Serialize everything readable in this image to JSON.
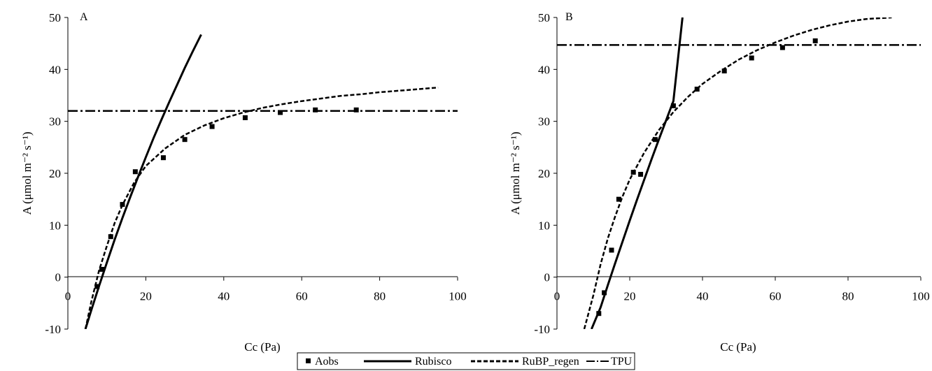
{
  "chart_data": [
    {
      "type": "line",
      "panel_label": "A",
      "xlabel": "Cc (Pa)",
      "ylabel": "A (μmol m⁻² s⁻¹)",
      "xlim": [
        0,
        100
      ],
      "ylim": [
        -10,
        50
      ],
      "x_ticks": [
        0,
        20,
        40,
        60,
        80,
        100
      ],
      "y_ticks": [
        -10,
        0,
        10,
        20,
        30,
        40,
        50
      ],
      "grid": false,
      "series": [
        {
          "name": "Aobs",
          "style": "markers",
          "x": [
            7.5,
            8.7,
            11.0,
            14.0,
            17.3,
            24.5,
            30.0,
            37.0,
            45.5,
            54.5,
            63.5,
            74.0
          ],
          "y": [
            -1.8,
            1.5,
            7.8,
            14.0,
            20.3,
            23.0,
            26.5,
            29.0,
            30.7,
            31.7,
            32.2,
            32.2
          ]
        },
        {
          "name": "Rubisco",
          "style": "solid",
          "x": [
            4.5,
            6,
            8,
            10,
            12,
            14,
            16,
            18,
            20,
            22,
            24,
            26,
            28,
            30,
            32,
            34.2
          ],
          "y": [
            -10,
            -6.4,
            -1.7,
            2.8,
            7.2,
            11.4,
            15.4,
            19.3,
            23.1,
            26.8,
            30.3,
            33.7,
            37.0,
            40.3,
            43.4,
            46.7
          ]
        },
        {
          "name": "RuBP_regen",
          "style": "dashed",
          "x": [
            4.5,
            6,
            8,
            10,
            12,
            14,
            17,
            20,
            25,
            30,
            35,
            40,
            45,
            50,
            55,
            60,
            65,
            70,
            75,
            80,
            85,
            90,
            95
          ],
          "y": [
            -10,
            -4.8,
            1.3,
            6.0,
            10.4,
            13.9,
            18.2,
            21.4,
            24.8,
            27.4,
            29.2,
            30.6,
            31.7,
            32.6,
            33.3,
            33.9,
            34.4,
            34.9,
            35.2,
            35.6,
            35.9,
            36.2,
            36.5
          ]
        },
        {
          "name": "TPU",
          "style": "dashdot",
          "x": [
            0,
            100
          ],
          "y": [
            32,
            32
          ]
        }
      ]
    },
    {
      "type": "line",
      "panel_label": "B",
      "xlabel": "Cc (Pa)",
      "ylabel": "A (μmol m⁻² s⁻¹)",
      "xlim": [
        0,
        100
      ],
      "ylim": [
        -10,
        50
      ],
      "x_ticks": [
        0,
        20,
        40,
        60,
        80,
        100
      ],
      "y_ticks": [
        -10,
        0,
        10,
        20,
        30,
        40,
        50
      ],
      "grid": false,
      "series": [
        {
          "name": "Aobs",
          "style": "markers",
          "x": [
            11.5,
            13.0,
            15.0,
            17.0,
            21.0,
            23.0,
            27.0,
            32.0,
            38.5,
            46.0,
            53.5,
            62.0,
            71.0
          ],
          "y": [
            -7.0,
            -3.0,
            5.2,
            15.0,
            20.2,
            19.8,
            26.5,
            33.0,
            36.2,
            39.7,
            42.2,
            44.2,
            45.5
          ]
        },
        {
          "name": "Rubisco",
          "style": "solid",
          "x": [
            9.5,
            12,
            14,
            16,
            18,
            20,
            22,
            24,
            26,
            28,
            30,
            32,
            34.5
          ],
          "y": [
            -10,
            -5.8,
            -1.5,
            2.7,
            6.8,
            10.9,
            14.9,
            18.8,
            22.7,
            26.5,
            30.2,
            33.9,
            50
          ]
        },
        {
          "name": "RuBP_regen",
          "style": "dashed",
          "x": [
            7.5,
            10,
            12,
            14,
            16,
            18,
            20,
            24,
            28,
            32,
            36,
            40,
            45,
            50,
            55,
            60,
            65,
            70,
            75,
            80,
            85,
            92
          ],
          "y": [
            -10,
            -3.5,
            2.5,
            7.5,
            11.7,
            15.5,
            18.8,
            24.0,
            28.3,
            31.8,
            34.7,
            37.2,
            39.7,
            41.9,
            43.7,
            45.2,
            46.5,
            47.6,
            48.5,
            49.2,
            49.7,
            50.0
          ]
        },
        {
          "name": "TPU",
          "style": "dashdot",
          "x": [
            0,
            100
          ],
          "y": [
            44.7,
            44.7
          ]
        }
      ]
    }
  ],
  "legend": {
    "placement": "bottom-center",
    "entries": [
      "Aobs",
      "Rubisco",
      "RuBP_regen",
      "TPU"
    ]
  }
}
